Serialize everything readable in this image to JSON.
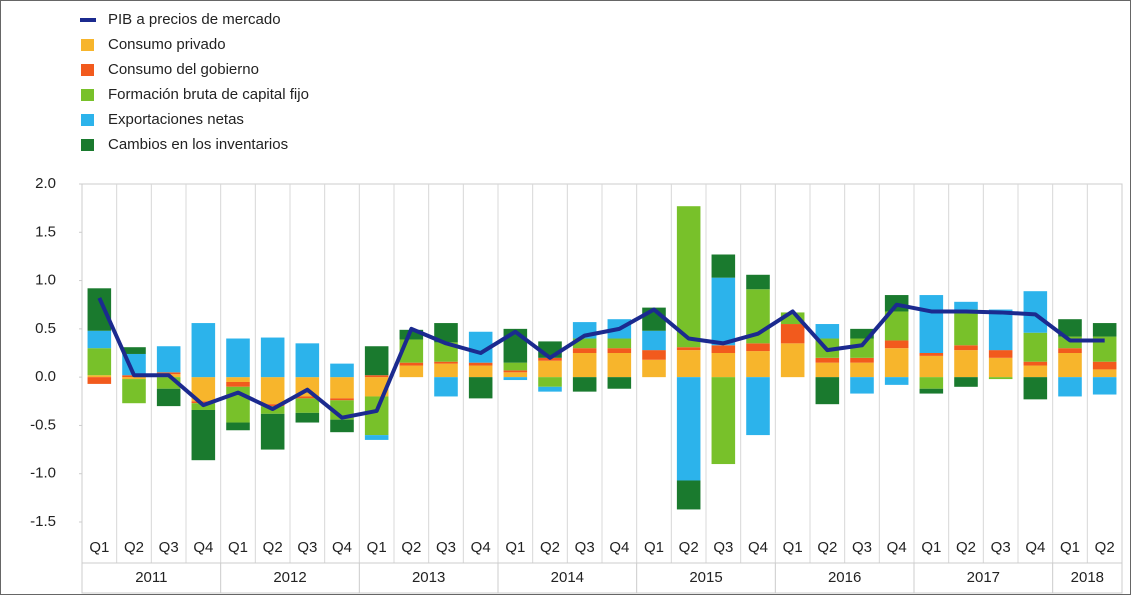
{
  "chart_data": {
    "type": "bar",
    "categories": [
      "Q1",
      "Q2",
      "Q3",
      "Q4",
      "Q1",
      "Q2",
      "Q3",
      "Q4",
      "Q1",
      "Q2",
      "Q3",
      "Q4",
      "Q1",
      "Q2",
      "Q3",
      "Q4",
      "Q1",
      "Q2",
      "Q3",
      "Q4",
      "Q1",
      "Q2",
      "Q3",
      "Q4",
      "Q1",
      "Q2",
      "Q3",
      "Q4",
      "Q1",
      "Q2"
    ],
    "years": [
      "2011",
      "2012",
      "2013",
      "2014",
      "2015",
      "2016",
      "2017",
      "2018"
    ],
    "series": [
      {
        "name": "PIB a precios de mercado",
        "type": "line",
        "color": "#1b2a8f",
        "values": [
          0.82,
          0.02,
          0.02,
          -0.29,
          -0.16,
          -0.33,
          -0.13,
          -0.42,
          -0.35,
          0.5,
          0.35,
          0.25,
          0.47,
          0.2,
          0.43,
          0.5,
          0.7,
          0.4,
          0.35,
          0.45,
          0.68,
          0.28,
          0.33,
          0.75,
          0.68,
          0.68,
          0.67,
          0.65,
          0.38,
          0.38
        ]
      },
      {
        "name": "Consumo privado",
        "type": "bar",
        "color": "#f7b52c",
        "values": [
          0.02,
          -0.02,
          0.03,
          -0.25,
          -0.05,
          -0.28,
          -0.2,
          -0.22,
          -0.2,
          0.12,
          0.14,
          0.12,
          0.05,
          0.17,
          0.25,
          0.25,
          0.18,
          0.28,
          0.25,
          0.27,
          0.35,
          0.15,
          0.15,
          0.3,
          0.22,
          0.28,
          0.2,
          0.12,
          0.25,
          0.08
        ]
      },
      {
        "name": "Consumo del gobierno",
        "type": "bar",
        "color": "#f25a1d",
        "values": [
          -0.07,
          0.02,
          0.02,
          -0.02,
          -0.05,
          -0.02,
          -0.02,
          -0.02,
          0.02,
          0.03,
          0.02,
          0.03,
          0.02,
          0.03,
          0.05,
          0.05,
          0.1,
          0.03,
          0.08,
          0.08,
          0.2,
          0.05,
          0.05,
          0.08,
          0.03,
          0.05,
          0.08,
          0.04,
          0.05,
          0.08
        ]
      },
      {
        "name": "Formación bruta de capital fijo",
        "type": "bar",
        "color": "#78c12a",
        "values": [
          0.28,
          -0.25,
          -0.12,
          -0.07,
          -0.37,
          -0.08,
          -0.15,
          -0.2,
          -0.4,
          0.24,
          0.2,
          0.0,
          0.08,
          -0.1,
          0.1,
          0.1,
          0.0,
          1.46,
          -0.9,
          0.56,
          0.12,
          0.2,
          0.2,
          0.3,
          -0.12,
          0.37,
          -0.02,
          0.3,
          0.12,
          0.26
        ]
      },
      {
        "name": "Exportaciones netas",
        "type": "bar",
        "color": "#2cb3eb",
        "values": [
          0.18,
          0.22,
          0.27,
          0.56,
          0.4,
          0.41,
          0.35,
          0.14,
          -0.05,
          0.0,
          -0.2,
          0.32,
          -0.03,
          -0.05,
          0.17,
          0.2,
          0.2,
          -1.07,
          0.7,
          -0.6,
          0.0,
          0.15,
          -0.17,
          -0.08,
          0.6,
          0.08,
          0.42,
          0.43,
          -0.2,
          -0.18
        ]
      },
      {
        "name": "Cambios en los inventarios",
        "type": "bar",
        "color": "#1a7a2e",
        "values": [
          0.44,
          0.07,
          -0.18,
          -0.52,
          -0.08,
          -0.37,
          -0.1,
          -0.13,
          0.3,
          0.1,
          0.2,
          -0.22,
          0.35,
          0.17,
          -0.15,
          -0.12,
          0.24,
          -0.3,
          0.24,
          0.15,
          0.0,
          -0.28,
          0.1,
          0.17,
          -0.05,
          -0.1,
          0.0,
          -0.23,
          0.18,
          0.14
        ]
      }
    ],
    "ylim": [
      -1.5,
      2.0
    ],
    "yticks": [
      {
        "value": 2,
        "label": "2.0"
      },
      1.5,
      {
        "value": 1,
        "label": "1.0"
      },
      0.5,
      {
        "value": 0,
        "label": "0.0"
      },
      -0.5,
      {
        "value": -1,
        "label": "-1.0"
      },
      -1.5
    ]
  }
}
